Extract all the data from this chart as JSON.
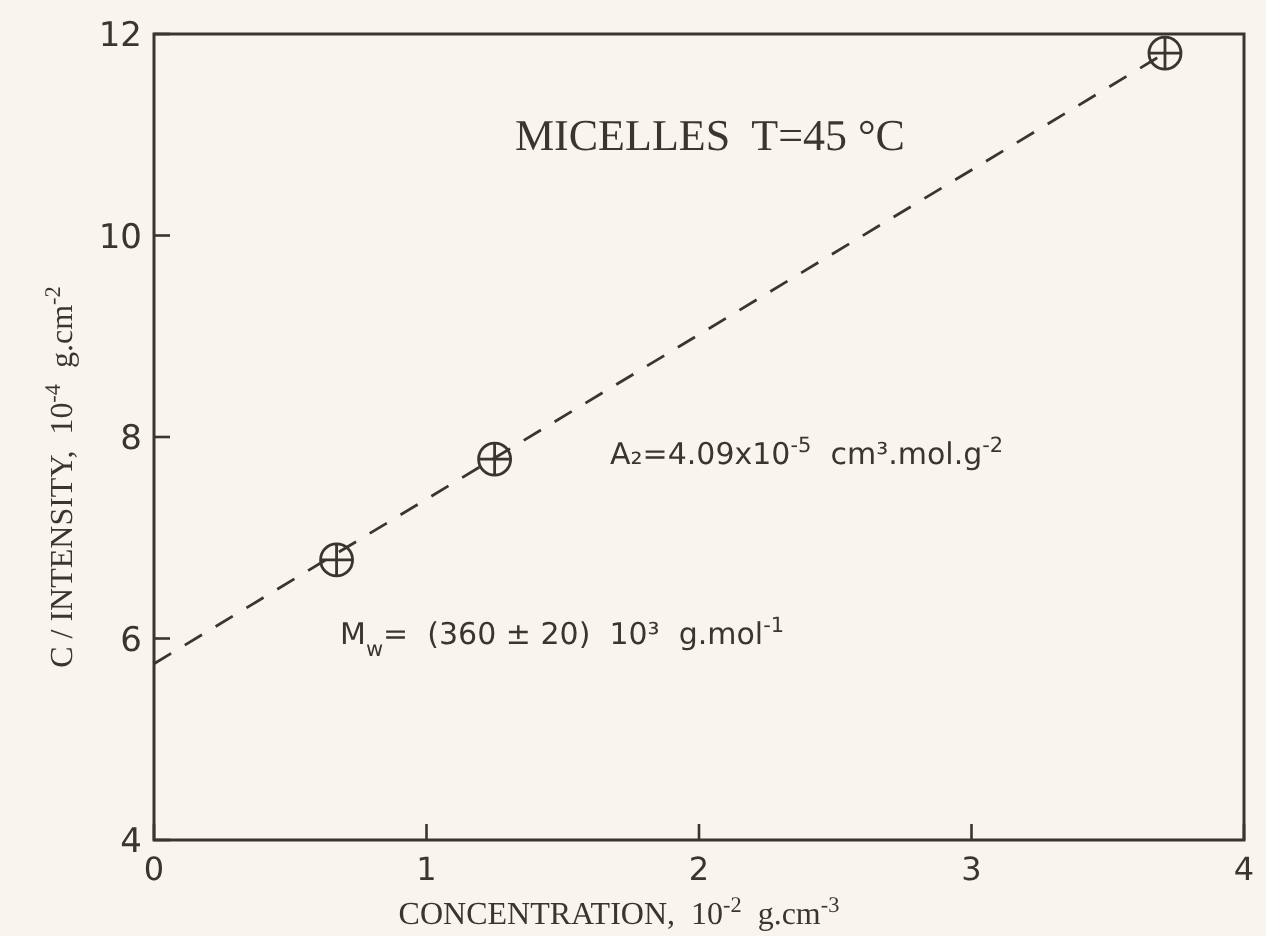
{
  "chart_data": {
    "type": "scatter",
    "title": "MICELLES  T=45 °C",
    "xlabel": "CONCENTRATION,  10$^{-2}$  g.cm$^{-3}$",
    "ylabel": "C / INTENSITY,  10$^{-4}$  g.cm$^{-2}$",
    "xlim": [
      0,
      4
    ],
    "xticks": [
      0,
      1,
      2,
      3,
      4
    ],
    "ylim": [
      4,
      12
    ],
    "yticks": [
      4,
      6,
      8,
      10,
      12
    ],
    "grid": false,
    "series": [
      {
        "type": "scatter",
        "color": "#3a3530",
        "marker": "cross",
        "x": [
          0.67,
          1.25,
          3.71
        ],
        "values": [
          6.78,
          7.78,
          11.81
        ]
      },
      {
        "type": "line",
        "color": "#3a3530",
        "line_style": "dashed",
        "marker": "none",
        "x": [
          0,
          3.71
        ],
        "values": [
          5.75,
          11.81
        ]
      }
    ],
    "annotations": [
      "A₂=4.09x10$^{-5}$  cm³.mol.g$^{-2}$",
      "M$_{w}$=  (360 ± 20)  10³  g.mol$^{-1}$"
    ]
  }
}
